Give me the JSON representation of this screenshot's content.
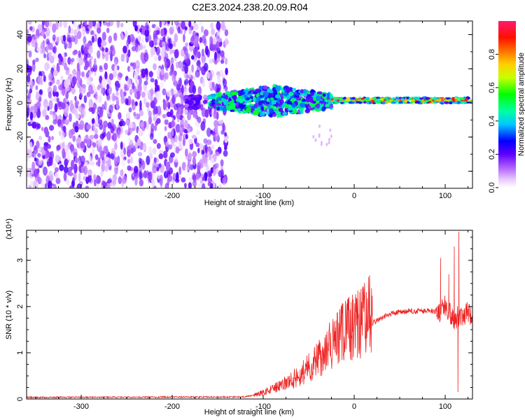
{
  "title": "C2E3.2024.238.20.09.R04",
  "chart_data": [
    {
      "type": "heatmap",
      "xlabel": "Height of straight line (km)",
      "ylabel": "Frequency (Hz)",
      "xlim": [
        -360,
        130
      ],
      "ylim": [
        -50,
        48
      ],
      "x_ticks": [
        -300,
        -200,
        -100,
        0,
        100
      ],
      "y_ticks": [
        -40,
        -20,
        0,
        20,
        40
      ],
      "colorbar": {
        "label": "Normalized spectral amplitude",
        "range": [
          0.0,
          1.0
        ],
        "ticks": [
          "0.0",
          "0.2",
          "0.4",
          "0.6",
          "0.8"
        ],
        "tick_values": [
          0.0,
          0.2,
          0.4,
          0.6,
          0.8
        ]
      },
      "regions": [
        {
          "x_range": [
            -360,
            -140
          ],
          "freq_range": [
            -50,
            48
          ],
          "amplitude_range": [
            0.02,
            0.22
          ],
          "pattern": "scattered"
        },
        {
          "x_range": [
            -185,
            -170
          ],
          "freq_range": [
            -3,
            4
          ],
          "amplitude_range": [
            0.1,
            0.25
          ],
          "pattern": "blob"
        },
        {
          "x_range": [
            -160,
            -25
          ],
          "freq_range": [
            -8,
            10
          ],
          "amplitude_range": [
            0.15,
            0.55
          ],
          "pattern": "band"
        },
        {
          "x_range": [
            -25,
            130
          ],
          "freq_range": [
            -1,
            4
          ],
          "amplitude_range": [
            0.4,
            1.0
          ],
          "pattern": "narrow-band"
        }
      ]
    },
    {
      "type": "line",
      "xlabel": "Height of straight line (km)",
      "ylabel": "SNR (10 * v/v)",
      "y_scale_label": "(x10⁴)",
      "xlim": [
        -360,
        130
      ],
      "ylim": [
        0,
        3.65
      ],
      "x_ticks": [
        -300,
        -200,
        -100,
        0,
        100
      ],
      "y_ticks": [
        0,
        1,
        2,
        3
      ],
      "series_color": "#ee2222",
      "profile": [
        [
          -360,
          0.01
        ],
        [
          -120,
          0.02
        ],
        [
          -100,
          0.12
        ],
        [
          -80,
          0.25
        ],
        [
          -60,
          0.45
        ],
        [
          -40,
          0.75
        ],
        [
          -20,
          1.1
        ],
        [
          -10,
          1.3
        ],
        [
          0,
          1.35
        ],
        [
          10,
          1.5
        ],
        [
          25,
          1.7
        ],
        [
          40,
          1.85
        ],
        [
          60,
          1.9
        ],
        [
          80,
          1.9
        ],
        [
          95,
          1.9
        ],
        [
          100,
          2.0
        ],
        [
          110,
          1.75
        ],
        [
          120,
          1.85
        ],
        [
          130,
          1.85
        ]
      ],
      "spikes": [
        {
          "x": 95,
          "y": 3.05
        },
        {
          "x": 110,
          "y": 3.3
        },
        {
          "x": 115,
          "y": 3.62
        },
        {
          "x": 114,
          "y": 0.15
        },
        {
          "x": -8,
          "y": 1.95
        },
        {
          "x": -20,
          "y": 1.7
        },
        {
          "x": 12,
          "y": 1.3
        },
        {
          "x": 104,
          "y": 2.7
        }
      ]
    }
  ]
}
